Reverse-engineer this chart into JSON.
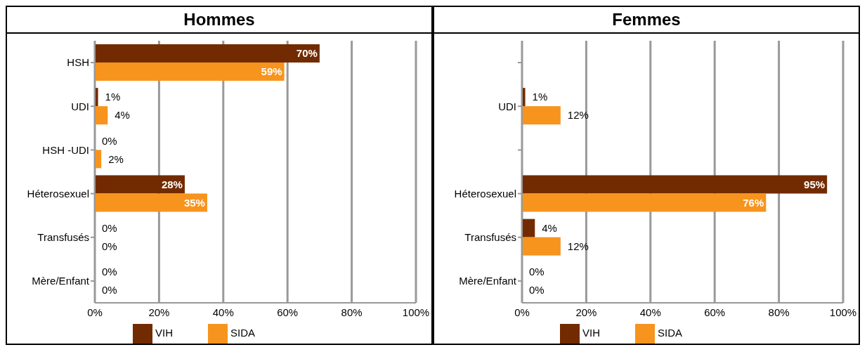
{
  "chart_data": [
    {
      "type": "bar",
      "orientation": "horizontal",
      "title": "Hommes",
      "categories": [
        "HSH",
        "UDI",
        "HSH -UDI",
        "Héterosexuel",
        "Transfusés",
        "Mère/Enfant"
      ],
      "series": [
        {
          "name": "VIH",
          "color": "#722b00",
          "values": [
            70,
            1,
            0,
            28,
            0,
            0
          ],
          "value_labels": [
            "70%",
            "1%",
            "0%",
            "28%",
            "0%",
            "0%"
          ]
        },
        {
          "name": "SIDA",
          "color": "#f7941d",
          "values": [
            59,
            4,
            2,
            35,
            0,
            0
          ],
          "value_labels": [
            "59%",
            "4%",
            "2%",
            "35%",
            "0%",
            "0%"
          ]
        }
      ],
      "xlim": [
        0,
        100
      ],
      "xticks": [
        {
          "value": 0,
          "label": "0%"
        },
        {
          "value": 20,
          "label": "20%"
        },
        {
          "value": 40,
          "label": "40%"
        },
        {
          "value": 60,
          "label": "60%"
        },
        {
          "value": 80,
          "label": "80%"
        },
        {
          "value": 100,
          "label": "100%"
        }
      ],
      "grid": "x",
      "legend": "bottom"
    },
    {
      "type": "bar",
      "orientation": "horizontal",
      "title": "Femmes",
      "categories": [
        null,
        "UDI",
        null,
        "Héterosexuel",
        "Transfusés",
        "Mère/Enfant"
      ],
      "series": [
        {
          "name": "VIH",
          "color": "#722b00",
          "values": [
            null,
            1,
            null,
            95,
            4,
            0
          ],
          "value_labels": [
            null,
            "1%",
            null,
            "95%",
            "4%",
            "0%"
          ]
        },
        {
          "name": "SIDA",
          "color": "#f7941d",
          "values": [
            null,
            12,
            null,
            76,
            12,
            0
          ],
          "value_labels": [
            null,
            "12%",
            null,
            "76%",
            "12%",
            "0%"
          ]
        }
      ],
      "xlim": [
        0,
        100
      ],
      "xticks": [
        {
          "value": 0,
          "label": "0%"
        },
        {
          "value": 20,
          "label": "20%"
        },
        {
          "value": 40,
          "label": "40%"
        },
        {
          "value": 60,
          "label": "60%"
        },
        {
          "value": 80,
          "label": "80%"
        },
        {
          "value": 100,
          "label": "100%"
        }
      ],
      "grid": "x",
      "legend": "bottom"
    }
  ]
}
